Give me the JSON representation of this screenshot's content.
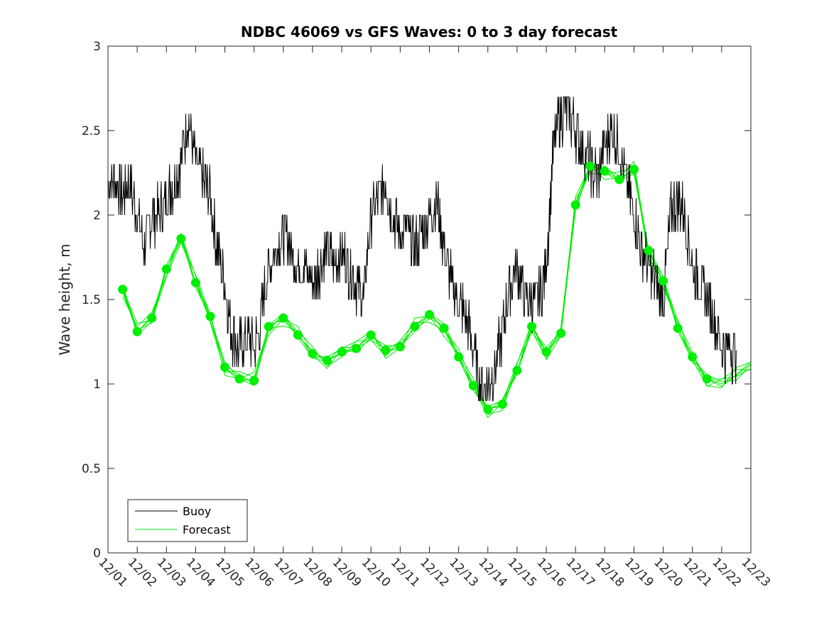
{
  "chart_data": {
    "type": "line",
    "title": "NDBC 46069 vs GFS Waves: 0 to 3 day forecast",
    "xlabel": "",
    "ylabel": "Wave height, m",
    "ylim": [
      0,
      3
    ],
    "xlim": [
      0,
      22
    ],
    "yticks": [
      0,
      0.5,
      1,
      1.5,
      2,
      2.5,
      3
    ],
    "ytick_labels": [
      "0",
      "0.5",
      "1",
      "1.5",
      "2",
      "2.5",
      "3"
    ],
    "xticks": [
      0,
      1,
      2,
      3,
      4,
      5,
      6,
      7,
      8,
      9,
      10,
      11,
      12,
      13,
      14,
      15,
      16,
      17,
      18,
      19,
      20,
      21,
      22
    ],
    "xtick_labels": [
      "12/01",
      "12/02",
      "12/03",
      "12/04",
      "12/05",
      "12/06",
      "12/07",
      "12/08",
      "12/09",
      "12/10",
      "12/11",
      "12/12",
      "12/13",
      "12/14",
      "12/15",
      "12/16",
      "12/17",
      "12/18",
      "12/19",
      "12/20",
      "12/21",
      "12/22",
      "12/23"
    ],
    "grid": false,
    "legend": {
      "position": "bottom-left",
      "entries": [
        "Buoy",
        "Forecast"
      ]
    },
    "colors": {
      "buoy": "#000000",
      "forecast": "#00ee00"
    },
    "series": [
      {
        "name": "Buoy",
        "x": [
          0,
          0.25,
          0.5,
          0.75,
          1,
          1.25,
          1.5,
          1.75,
          2,
          2.25,
          2.5,
          2.75,
          3,
          3.25,
          3.5,
          3.75,
          4,
          4.25,
          4.5,
          4.75,
          5,
          5.25,
          5.5,
          5.75,
          6,
          6.25,
          6.5,
          6.75,
          7,
          7.25,
          7.5,
          7.75,
          8,
          8.25,
          8.5,
          8.75,
          9,
          9.25,
          9.5,
          9.75,
          10,
          10.25,
          10.5,
          10.75,
          11,
          11.25,
          11.5,
          11.75,
          12,
          12.25,
          12.5,
          12.75,
          13,
          13.25,
          13.5,
          13.75,
          14,
          14.25,
          14.5,
          14.75,
          15,
          15.25,
          15.5,
          15.75,
          16,
          16.25,
          16.5,
          16.75,
          17,
          17.25,
          17.5,
          17.75,
          18,
          18.25,
          18.5,
          18.75,
          19,
          19.25,
          19.5,
          19.75,
          20,
          20.25,
          20.5,
          20.75,
          21,
          21.25,
          21.5
        ],
        "values": [
          2.2,
          2.2,
          2.1,
          2.2,
          2.0,
          1.8,
          2.0,
          2.0,
          2.1,
          2.2,
          2.3,
          2.6,
          2.3,
          2.2,
          2.1,
          1.8,
          1.6,
          1.3,
          1.2,
          1.3,
          1.2,
          1.4,
          1.7,
          1.8,
          1.9,
          1.8,
          1.7,
          1.7,
          1.6,
          1.7,
          1.8,
          1.7,
          1.8,
          1.7,
          1.6,
          1.5,
          2.0,
          2.1,
          2.2,
          2.0,
          1.9,
          1.9,
          1.8,
          1.9,
          2.0,
          2.1,
          1.8,
          1.6,
          1.5,
          1.4,
          1.2,
          1.0,
          1.0,
          1.1,
          1.3,
          1.6,
          1.7,
          1.5,
          1.5,
          1.5,
          1.7,
          2.4,
          2.6,
          2.6,
          2.5,
          2.4,
          2.3,
          2.2,
          2.4,
          2.5,
          2.4,
          2.2,
          2.0,
          1.8,
          1.7,
          1.6,
          1.5,
          2.0,
          2.1,
          2.0,
          1.7,
          1.6,
          1.5,
          1.4,
          1.2,
          1.2,
          1.2
        ]
      },
      {
        "name": "Forecast",
        "x": [
          0.5,
          1,
          1.5,
          2,
          2.5,
          3,
          3.5,
          4,
          4.5,
          5,
          5.5,
          6,
          6.5,
          7,
          7.5,
          8,
          8.5,
          9,
          9.5,
          10,
          10.5,
          11,
          11.5,
          12,
          12.5,
          13,
          13.5,
          14,
          14.5,
          15,
          15.5,
          16,
          16.5,
          17,
          17.5,
          18,
          18.5,
          19,
          19.5,
          20,
          20.5,
          21,
          21.5,
          22
        ],
        "values": [
          1.56,
          1.31,
          1.39,
          1.68,
          1.86,
          1.6,
          1.4,
          1.1,
          1.03,
          1.02,
          1.34,
          1.39,
          1.29,
          1.18,
          1.14,
          1.19,
          1.21,
          1.29,
          1.2,
          1.22,
          1.34,
          1.41,
          1.33,
          1.16,
          0.99,
          0.85,
          0.88,
          1.08,
          1.34,
          1.19,
          1.3,
          2.06,
          2.29,
          2.26,
          2.21,
          2.27,
          1.79,
          1.61,
          1.33,
          1.16,
          1.03,
          1.0,
          1.05,
          1.12
        ]
      }
    ],
    "forecast_markers": {
      "x": [
        0.5,
        1,
        1.5,
        2,
        2.5,
        3,
        3.5,
        4,
        4.5,
        5,
        5.5,
        6,
        6.5,
        7,
        7.5,
        8,
        8.5,
        9,
        9.5,
        10,
        10.5,
        11,
        11.5,
        12,
        12.5,
        13,
        13.5,
        14,
        14.5,
        15,
        15.5,
        16,
        16.5,
        17,
        17.5,
        18,
        18.5,
        19,
        19.5,
        20,
        20.5
      ],
      "values": [
        1.56,
        1.31,
        1.39,
        1.68,
        1.86,
        1.6,
        1.4,
        1.1,
        1.03,
        1.02,
        1.34,
        1.39,
        1.29,
        1.18,
        1.14,
        1.19,
        1.21,
        1.29,
        1.2,
        1.22,
        1.34,
        1.41,
        1.33,
        1.16,
        0.99,
        0.85,
        0.88,
        1.08,
        1.34,
        1.19,
        1.3,
        2.06,
        2.29,
        2.26,
        2.21,
        2.27,
        1.79,
        1.61,
        1.33,
        1.16,
        1.03
      ]
    }
  }
}
